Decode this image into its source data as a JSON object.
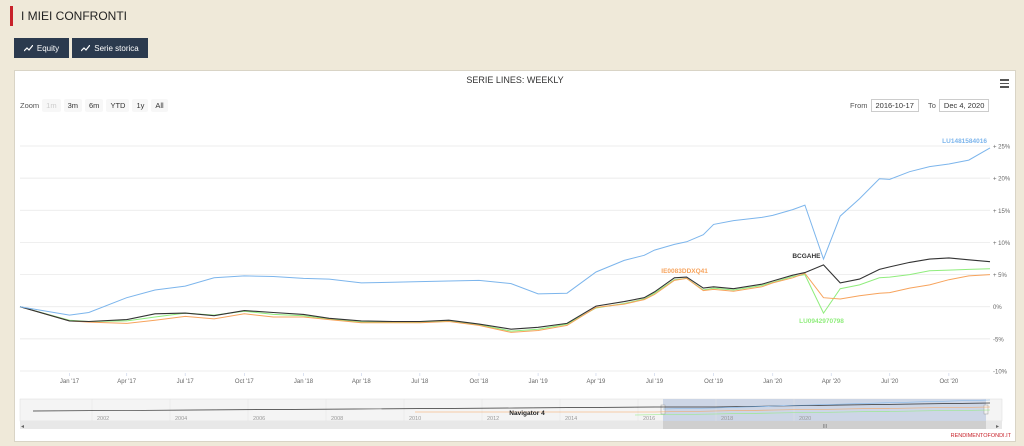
{
  "header": {
    "title": "I MIEI CONFRONTI"
  },
  "tabs": [
    {
      "label": "Equity",
      "icon": "line-chart-icon"
    },
    {
      "label": "Serie storica",
      "icon": "line-chart-icon"
    }
  ],
  "chart": {
    "zoom_label": "Zoom",
    "zoom_buttons": [
      {
        "label": "1m",
        "disabled": true
      },
      {
        "label": "3m",
        "disabled": false
      },
      {
        "label": "6m",
        "disabled": false
      },
      {
        "label": "YTD",
        "disabled": false
      },
      {
        "label": "1y",
        "disabled": false
      },
      {
        "label": "All",
        "disabled": false
      }
    ],
    "from_label": "From",
    "from_value": "2016-10-17",
    "to_label": "To",
    "to_value": "Dec 4, 2020",
    "navigator_label": "Navigator 4",
    "navigator_years": [
      "2002",
      "2004",
      "2006",
      "2008",
      "2010",
      "2012",
      "2014",
      "2016",
      "2018",
      "2020"
    ],
    "navigator_center": "III",
    "credit": "RENDIMENTOFONDI.IT"
  },
  "chart_data": {
    "type": "line",
    "title": "SERIE LINES: WEEKLY",
    "x_tick_labels": [
      "Jan '17",
      "Apr '17",
      "Jul '17",
      "Oct '17",
      "Jan '18",
      "Apr '18",
      "Jul '18",
      "Oct '18",
      "Jan '19",
      "Apr '19",
      "Jul '19",
      "Oct '19",
      "Jan '20",
      "Apr '20",
      "Jul '20",
      "Oct '20"
    ],
    "y_tick_labels": [
      "+ 25%",
      "+ 20%",
      "+ 15%",
      "+ 10%",
      "+ 5%",
      "0%",
      "-5%",
      "-10%"
    ],
    "ylim": [
      -10,
      27
    ],
    "grid": true,
    "x": [
      "2016-10-17",
      "2017-01-02",
      "2017-02-01",
      "2017-04-01",
      "2017-05-15",
      "2017-07-01",
      "2017-08-15",
      "2017-10-01",
      "2017-11-15",
      "2018-01-01",
      "2018-02-10",
      "2018-04-01",
      "2018-05-20",
      "2018-07-01",
      "2018-08-15",
      "2018-10-01",
      "2018-11-20",
      "2019-01-01",
      "2019-02-15",
      "2019-04-01",
      "2019-05-15",
      "2019-06-15",
      "2019-07-01",
      "2019-08-01",
      "2019-08-20",
      "2019-09-15",
      "2019-10-01",
      "2019-11-01",
      "2019-12-15",
      "2020-01-01",
      "2020-02-01",
      "2020-02-20",
      "2020-03-20",
      "2020-04-15",
      "2020-05-15",
      "2020-06-15",
      "2020-07-01",
      "2020-08-01",
      "2020-09-01",
      "2020-10-01",
      "2020-11-01",
      "2020-12-04"
    ],
    "series": [
      {
        "name": "LU1481584016",
        "color": "#7cb5ec",
        "values": [
          0,
          -1.3,
          -0.9,
          1.4,
          2.6,
          3.2,
          4.5,
          4.8,
          4.7,
          4.4,
          4.3,
          3.7,
          3.8,
          3.9,
          4.0,
          4.1,
          3.6,
          2.0,
          2.1,
          5.4,
          7.2,
          8.0,
          8.8,
          9.7,
          10.1,
          11.2,
          12.8,
          13.4,
          13.9,
          14.2,
          15.1,
          15.8,
          7.4,
          14.1,
          16.8,
          19.9,
          19.8,
          21.0,
          21.8,
          22.2,
          22.8,
          24.7
        ]
      },
      {
        "name": "BCGAHE",
        "color": "#333333",
        "values": [
          0,
          -2.2,
          -2.3,
          -2.0,
          -1.1,
          -1.0,
          -1.4,
          -0.6,
          -0.9,
          -1.2,
          -1.8,
          -2.2,
          -2.3,
          -2.3,
          -2.1,
          -2.7,
          -3.5,
          -3.2,
          -2.6,
          0.1,
          0.8,
          1.4,
          2.3,
          4.5,
          4.6,
          2.9,
          3.1,
          2.8,
          3.5,
          4.0,
          4.9,
          5.3,
          6.5,
          3.7,
          4.3,
          5.8,
          6.2,
          6.9,
          7.4,
          7.6,
          7.3,
          7.0
        ]
      },
      {
        "name": "IE0083DDXQ41",
        "color": "#f7a35c",
        "values": [
          0,
          -2.2,
          -2.4,
          -2.6,
          -2.1,
          -1.5,
          -1.9,
          -1.1,
          -1.6,
          -1.6,
          -2.0,
          -2.5,
          -2.5,
          -2.5,
          -2.3,
          -2.9,
          -4.0,
          -3.7,
          -2.9,
          -0.1,
          0.4,
          1.1,
          1.9,
          4.1,
          4.4,
          2.5,
          2.7,
          2.4,
          3.1,
          3.7,
          4.5,
          5.2,
          1.4,
          1.2,
          1.7,
          2.1,
          2.2,
          2.9,
          3.4,
          4.2,
          4.8,
          5.0
        ]
      },
      {
        "name": "LU0942970798",
        "color": "#90ed7d",
        "values": [
          0,
          -2.1,
          -2.3,
          -2.2,
          -1.6,
          -1.0,
          -1.3,
          -0.7,
          -1.2,
          -1.4,
          -1.9,
          -2.4,
          -2.4,
          -2.4,
          -2.2,
          -2.8,
          -3.8,
          -3.5,
          -2.7,
          -0.2,
          0.5,
          1.2,
          2.1,
          4.2,
          4.4,
          2.6,
          2.9,
          2.6,
          3.3,
          3.8,
          4.7,
          5.0,
          -1.0,
          2.8,
          3.4,
          4.5,
          4.6,
          5.0,
          5.6,
          5.7,
          5.8,
          5.9
        ]
      }
    ]
  }
}
